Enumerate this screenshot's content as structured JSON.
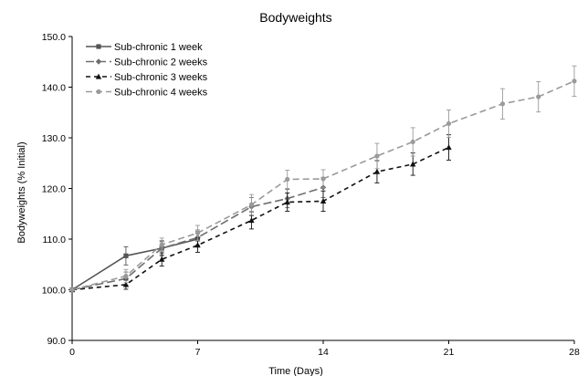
{
  "chart_data": {
    "type": "line",
    "title": "Bodyweights",
    "xlabel": "Time (Days)",
    "ylabel": "Bodyweights (% Initial)",
    "xlim": [
      0,
      28
    ],
    "ylim": [
      90,
      150
    ],
    "xticks": [
      0,
      7,
      14,
      21,
      28
    ],
    "yticks": [
      90,
      100,
      110,
      120,
      130,
      140,
      150
    ],
    "ytick_labels": [
      "90.0",
      "100.0",
      "110.0",
      "120.0",
      "130.0",
      "140.0",
      "150.0"
    ],
    "grid": false,
    "legend_position": "top-left",
    "series": [
      {
        "name": "Sub-chronic 1 week",
        "color": "#555555",
        "dash": "solid",
        "marker": "square",
        "x": [
          0,
          3,
          5,
          7
        ],
        "y": [
          100,
          106.7,
          108.2,
          110
        ],
        "err": [
          0,
          1.8,
          1.3,
          1.5
        ]
      },
      {
        "name": "Sub-chronic 2 weeks",
        "color": "#6e6e6e",
        "dash": "long-dash",
        "marker": "diamond",
        "x": [
          0,
          3,
          5,
          7,
          10,
          12,
          14
        ],
        "y": [
          100,
          102.2,
          108.2,
          110.3,
          116.4,
          118,
          120.2
        ],
        "err": [
          0,
          1.3,
          1.5,
          1.5,
          1.8,
          1.8,
          2
        ]
      },
      {
        "name": "Sub-chronic 3 weeks",
        "color": "#111111",
        "dash": "short-dash",
        "marker": "triangle",
        "x": [
          0,
          3,
          5,
          7,
          10,
          12,
          14,
          17,
          19,
          21
        ],
        "y": [
          100,
          101,
          106,
          108.8,
          113.7,
          117.3,
          117.5,
          123.3,
          124.8,
          128.1
        ],
        "err": [
          0,
          0.9,
          1.3,
          1.4,
          1.7,
          1.8,
          2,
          2.2,
          2.2,
          2.5
        ]
      },
      {
        "name": "Sub-chronic 4 weeks",
        "color": "#9a9a9a",
        "dash": "medium-dash",
        "marker": "circle",
        "x": [
          0,
          3,
          5,
          7,
          10,
          12,
          14,
          17,
          19,
          21,
          24,
          26,
          28
        ],
        "y": [
          100,
          102.7,
          108.9,
          111.2,
          116.8,
          121.8,
          121.9,
          126.4,
          129.2,
          132.8,
          136.7,
          138.1,
          141.2
        ],
        "err": [
          0,
          1.3,
          1.3,
          1.5,
          2,
          1.8,
          1.8,
          2.5,
          2.8,
          2.7,
          3,
          3,
          3
        ]
      }
    ]
  }
}
